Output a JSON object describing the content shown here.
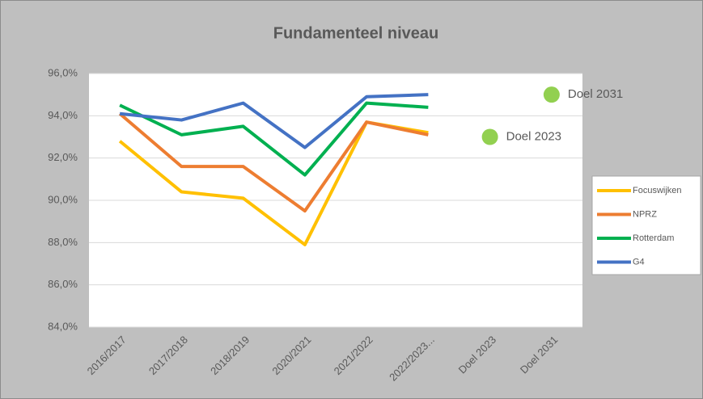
{
  "chart_data": {
    "type": "line",
    "title": "Fundamenteel niveau",
    "categories": [
      "2016/2017",
      "2017/2018",
      "2018/2019",
      "2020/2021",
      "2021/2022",
      "2022/2023...",
      "Doel 2023",
      "Doel 2031"
    ],
    "series": [
      {
        "name": "Focuswijken",
        "color": "#ffc000",
        "values": [
          92.8,
          90.4,
          90.1,
          87.9,
          93.7,
          93.2,
          null,
          null
        ]
      },
      {
        "name": "NPRZ",
        "color": "#ed7d31",
        "values": [
          94.1,
          91.6,
          91.6,
          89.5,
          93.7,
          93.1,
          null,
          null
        ]
      },
      {
        "name": "Rotterdam",
        "color": "#00b050",
        "values": [
          94.5,
          93.1,
          93.5,
          91.2,
          94.6,
          94.4,
          null,
          null
        ]
      },
      {
        "name": "G4",
        "color": "#4472c4",
        "values": [
          94.1,
          93.8,
          94.6,
          92.5,
          94.9,
          95.0,
          null,
          null
        ]
      }
    ],
    "targets": [
      {
        "label": "Doel 2023",
        "value": 93.0,
        "color": "#92d050"
      },
      {
        "label": "Doel 2031",
        "value": 95.0,
        "color": "#92d050"
      }
    ],
    "ylim": [
      84,
      96
    ],
    "yticks": [
      {
        "value": 84,
        "label": "84,0%"
      },
      {
        "value": 86,
        "label": "86,0%"
      },
      {
        "value": 88,
        "label": "88,0%"
      },
      {
        "value": 90,
        "label": "90,0%"
      },
      {
        "value": 92,
        "label": "92,0%"
      },
      {
        "value": 94,
        "label": "94,0%"
      },
      {
        "value": 96,
        "label": "96,0%"
      }
    ],
    "grid": true,
    "legend": "right"
  }
}
